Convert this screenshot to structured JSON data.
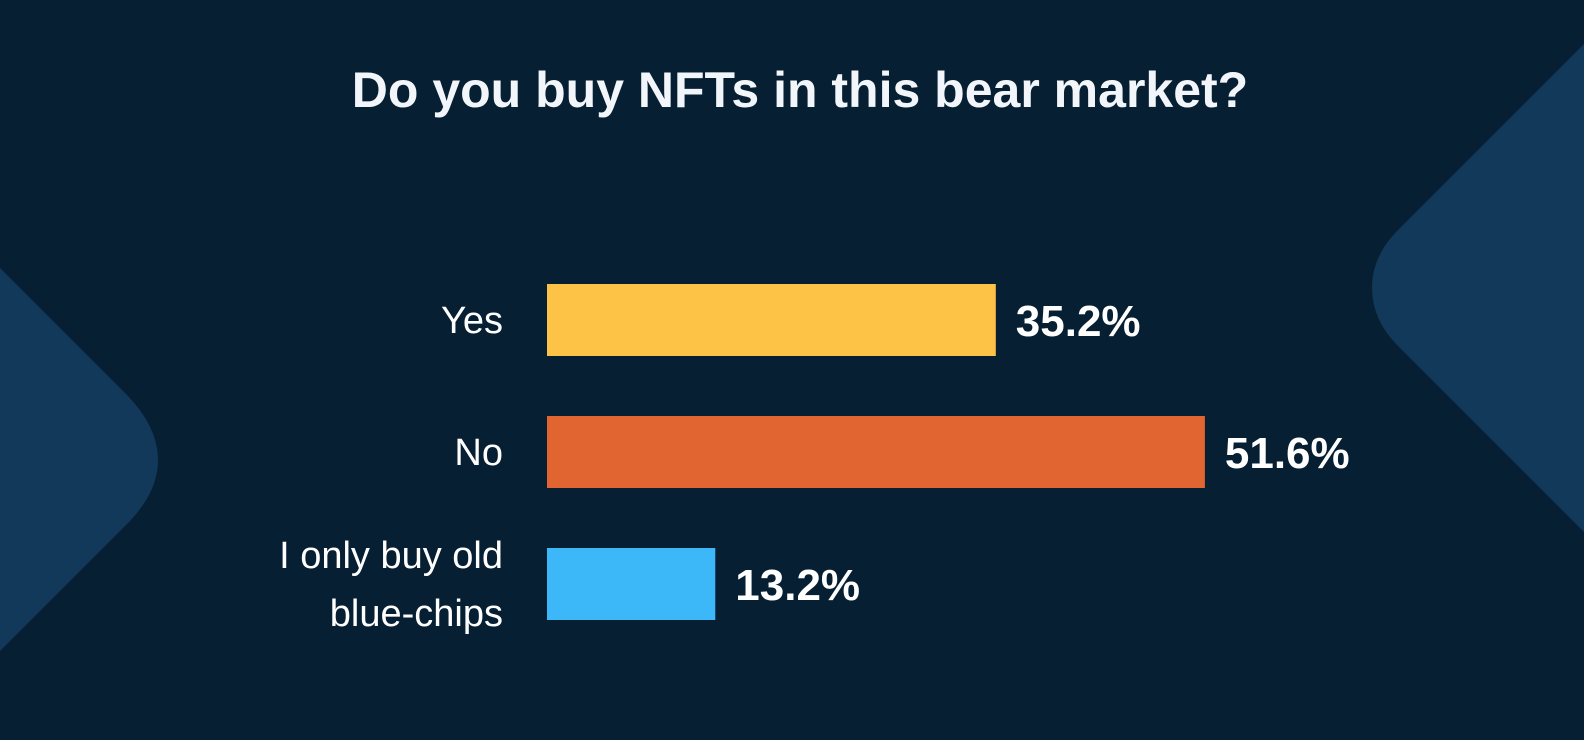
{
  "colors": {
    "background": "#061f33",
    "shape": "#12385a"
  },
  "chart_data": {
    "type": "bar",
    "orientation": "horizontal",
    "title": "Do you buy NFTs in this bear market?",
    "categories": [
      [
        "Yes"
      ],
      [
        "No"
      ],
      [
        "I only buy old",
        "blue-chips"
      ]
    ],
    "values": [
      35.2,
      51.6,
      13.2
    ],
    "value_labels": [
      "35.2%",
      "51.6%",
      "13.2%"
    ],
    "unit": "%",
    "colors": [
      "#fcc347",
      "#e06531",
      "#3cb8f8"
    ],
    "xlim": [
      0,
      100
    ],
    "grid": false,
    "legend": "none"
  }
}
